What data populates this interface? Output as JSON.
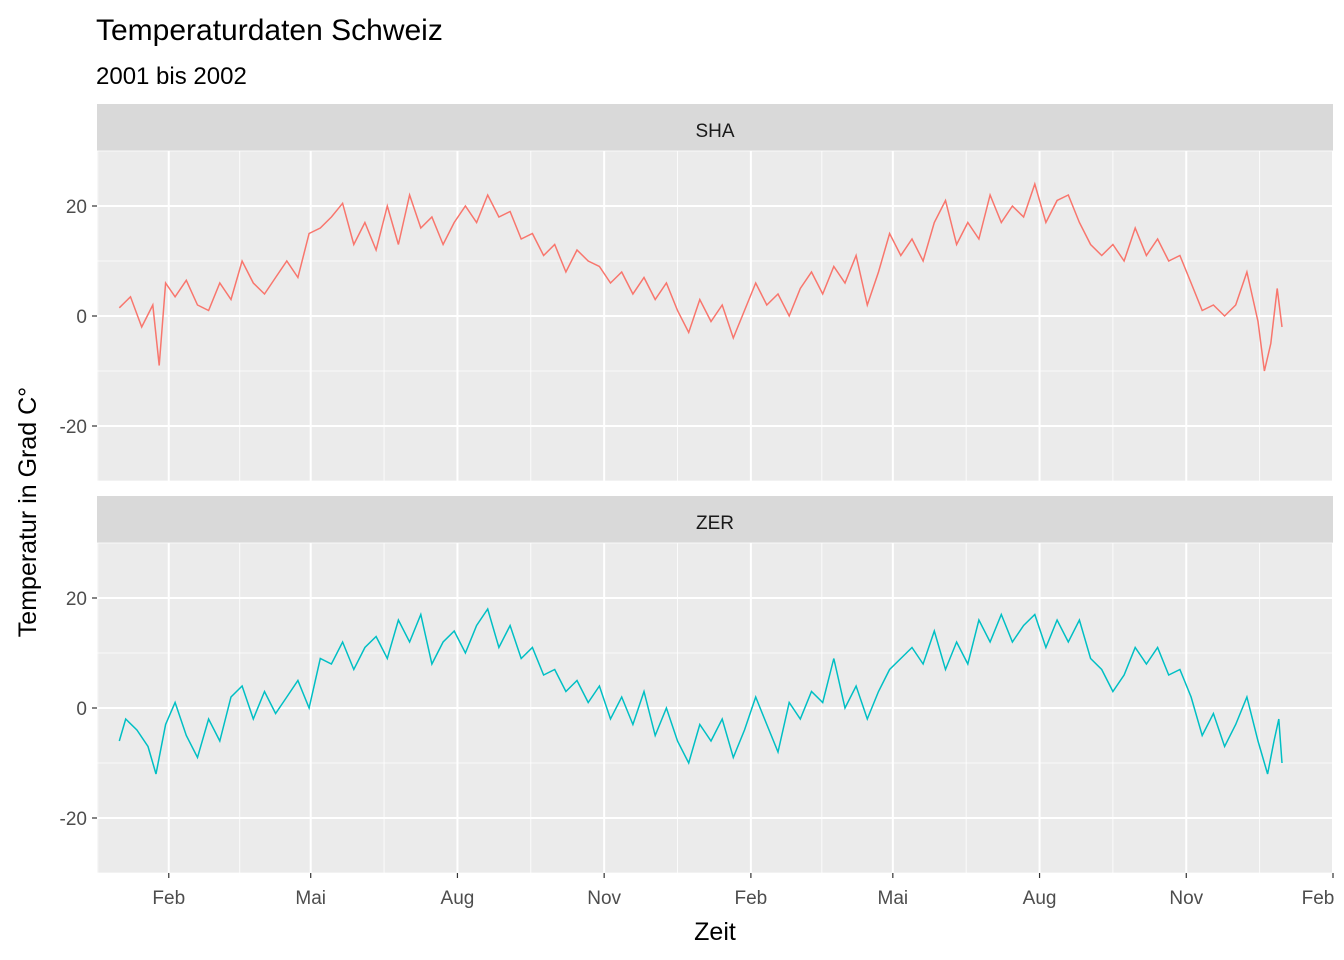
{
  "chart_data": {
    "type": "line",
    "title": "Temperaturdaten Schweiz",
    "subtitle": "2001 bis 2002",
    "xlabel": "Zeit",
    "ylabel": "Temperatur in Grad C°",
    "ylim": [
      -30,
      30
    ],
    "y_ticks": [
      -20,
      0,
      20
    ],
    "x_ticks": [
      {
        "date": "2001-02-01",
        "label": "Feb"
      },
      {
        "date": "2001-05-01",
        "label": "Mai"
      },
      {
        "date": "2001-08-01",
        "label": "Aug"
      },
      {
        "date": "2001-11-01",
        "label": "Nov"
      },
      {
        "date": "2002-02-01",
        "label": "Feb"
      },
      {
        "date": "2002-05-01",
        "label": "Mai"
      },
      {
        "date": "2002-08-01",
        "label": "Aug"
      },
      {
        "date": "2002-11-01",
        "label": "Nov"
      },
      {
        "date": "2003-02-01",
        "label": "Feb"
      }
    ],
    "xlim": [
      "2000-12-18",
      "2003-02-01"
    ],
    "grid": true,
    "legend": "none",
    "facets": [
      {
        "strip": "SHA",
        "color": "#F8766D",
        "series": {
          "name": "SHA",
          "points": [
            [
              "2001-01-01",
              1.5
            ],
            [
              "2001-01-08",
              3.5
            ],
            [
              "2001-01-15",
              -2.0
            ],
            [
              "2001-01-22",
              2.0
            ],
            [
              "2001-01-26",
              -9.0
            ],
            [
              "2001-01-30",
              6.0
            ],
            [
              "2001-02-05",
              3.5
            ],
            [
              "2001-02-12",
              6.5
            ],
            [
              "2001-02-19",
              2.0
            ],
            [
              "2001-02-26",
              1.0
            ],
            [
              "2001-03-05",
              6.0
            ],
            [
              "2001-03-12",
              3.0
            ],
            [
              "2001-03-19",
              10.0
            ],
            [
              "2001-03-26",
              6.0
            ],
            [
              "2001-04-02",
              4.0
            ],
            [
              "2001-04-09",
              7.0
            ],
            [
              "2001-04-16",
              10.0
            ],
            [
              "2001-04-23",
              7.0
            ],
            [
              "2001-04-30",
              15.0
            ],
            [
              "2001-05-07",
              16.0
            ],
            [
              "2001-05-14",
              18.0
            ],
            [
              "2001-05-21",
              20.5
            ],
            [
              "2001-05-28",
              13.0
            ],
            [
              "2001-06-04",
              17.0
            ],
            [
              "2001-06-11",
              12.0
            ],
            [
              "2001-06-18",
              20.0
            ],
            [
              "2001-06-25",
              13.0
            ],
            [
              "2001-07-02",
              22.0
            ],
            [
              "2001-07-09",
              16.0
            ],
            [
              "2001-07-16",
              18.0
            ],
            [
              "2001-07-23",
              13.0
            ],
            [
              "2001-07-30",
              17.0
            ],
            [
              "2001-08-06",
              20.0
            ],
            [
              "2001-08-13",
              17.0
            ],
            [
              "2001-08-20",
              22.0
            ],
            [
              "2001-08-27",
              18.0
            ],
            [
              "2001-09-03",
              19.0
            ],
            [
              "2001-09-10",
              14.0
            ],
            [
              "2001-09-17",
              15.0
            ],
            [
              "2001-09-24",
              11.0
            ],
            [
              "2001-10-01",
              13.0
            ],
            [
              "2001-10-08",
              8.0
            ],
            [
              "2001-10-15",
              12.0
            ],
            [
              "2001-10-22",
              10.0
            ],
            [
              "2001-10-29",
              9.0
            ],
            [
              "2001-11-05",
              6.0
            ],
            [
              "2001-11-12",
              8.0
            ],
            [
              "2001-11-19",
              4.0
            ],
            [
              "2001-11-26",
              7.0
            ],
            [
              "2001-12-03",
              3.0
            ],
            [
              "2001-12-10",
              6.0
            ],
            [
              "2001-12-17",
              1.0
            ],
            [
              "2001-12-24",
              -3.0
            ],
            [
              "2001-12-31",
              3.0
            ],
            [
              "2002-01-07",
              -1.0
            ],
            [
              "2002-01-14",
              2.0
            ],
            [
              "2002-01-21",
              -4.0
            ],
            [
              "2002-01-28",
              1.0
            ],
            [
              "2002-02-04",
              6.0
            ],
            [
              "2002-02-11",
              2.0
            ],
            [
              "2002-02-18",
              4.0
            ],
            [
              "2002-02-25",
              0.0
            ],
            [
              "2002-03-04",
              5.0
            ],
            [
              "2002-03-11",
              8.0
            ],
            [
              "2002-03-18",
              4.0
            ],
            [
              "2002-03-25",
              9.0
            ],
            [
              "2002-04-01",
              6.0
            ],
            [
              "2002-04-08",
              11.0
            ],
            [
              "2002-04-15",
              2.0
            ],
            [
              "2002-04-22",
              8.0
            ],
            [
              "2002-04-29",
              15.0
            ],
            [
              "2002-05-06",
              11.0
            ],
            [
              "2002-05-13",
              14.0
            ],
            [
              "2002-05-20",
              10.0
            ],
            [
              "2002-05-27",
              17.0
            ],
            [
              "2002-06-03",
              21.0
            ],
            [
              "2002-06-10",
              13.0
            ],
            [
              "2002-06-17",
              17.0
            ],
            [
              "2002-06-24",
              14.0
            ],
            [
              "2002-07-01",
              22.0
            ],
            [
              "2002-07-08",
              17.0
            ],
            [
              "2002-07-15",
              20.0
            ],
            [
              "2002-07-22",
              18.0
            ],
            [
              "2002-07-29",
              24.0
            ],
            [
              "2002-08-05",
              17.0
            ],
            [
              "2002-08-12",
              21.0
            ],
            [
              "2002-08-19",
              22.0
            ],
            [
              "2002-08-26",
              17.0
            ],
            [
              "2002-09-02",
              13.0
            ],
            [
              "2002-09-09",
              11.0
            ],
            [
              "2002-09-16",
              13.0
            ],
            [
              "2002-09-23",
              10.0
            ],
            [
              "2002-09-30",
              16.0
            ],
            [
              "2002-10-07",
              11.0
            ],
            [
              "2002-10-14",
              14.0
            ],
            [
              "2002-10-21",
              10.0
            ],
            [
              "2002-10-28",
              11.0
            ],
            [
              "2002-11-04",
              6.0
            ],
            [
              "2002-11-11",
              1.0
            ],
            [
              "2002-11-18",
              2.0
            ],
            [
              "2002-11-25",
              0.0
            ],
            [
              "2002-12-02",
              2.0
            ],
            [
              "2002-12-09",
              8.0
            ],
            [
              "2002-12-16",
              -1.0
            ],
            [
              "2002-12-20",
              -10.0
            ],
            [
              "2002-12-24",
              -5.0
            ],
            [
              "2002-12-28",
              5.0
            ],
            [
              "2002-12-31",
              -2.0
            ]
          ]
        }
      },
      {
        "strip": "ZER",
        "color": "#00BFC4",
        "series": {
          "name": "ZER",
          "points": [
            [
              "2001-01-01",
              -6.0
            ],
            [
              "2001-01-05",
              -2.0
            ],
            [
              "2001-01-12",
              -4.0
            ],
            [
              "2001-01-19",
              -7.0
            ],
            [
              "2001-01-24",
              -12.0
            ],
            [
              "2001-01-30",
              -3.0
            ],
            [
              "2001-02-05",
              1.0
            ],
            [
              "2001-02-12",
              -5.0
            ],
            [
              "2001-02-19",
              -9.0
            ],
            [
              "2001-02-26",
              -2.0
            ],
            [
              "2001-03-05",
              -6.0
            ],
            [
              "2001-03-12",
              2.0
            ],
            [
              "2001-03-19",
              4.0
            ],
            [
              "2001-03-26",
              -2.0
            ],
            [
              "2001-04-02",
              3.0
            ],
            [
              "2001-04-09",
              -1.0
            ],
            [
              "2001-04-16",
              2.0
            ],
            [
              "2001-04-23",
              5.0
            ],
            [
              "2001-04-30",
              0.0
            ],
            [
              "2001-05-07",
              9.0
            ],
            [
              "2001-05-14",
              8.0
            ],
            [
              "2001-05-21",
              12.0
            ],
            [
              "2001-05-28",
              7.0
            ],
            [
              "2001-06-04",
              11.0
            ],
            [
              "2001-06-11",
              13.0
            ],
            [
              "2001-06-18",
              9.0
            ],
            [
              "2001-06-25",
              16.0
            ],
            [
              "2001-07-02",
              12.0
            ],
            [
              "2001-07-09",
              17.0
            ],
            [
              "2001-07-16",
              8.0
            ],
            [
              "2001-07-23",
              12.0
            ],
            [
              "2001-07-30",
              14.0
            ],
            [
              "2001-08-06",
              10.0
            ],
            [
              "2001-08-13",
              15.0
            ],
            [
              "2001-08-20",
              18.0
            ],
            [
              "2001-08-27",
              11.0
            ],
            [
              "2001-09-03",
              15.0
            ],
            [
              "2001-09-10",
              9.0
            ],
            [
              "2001-09-17",
              11.0
            ],
            [
              "2001-09-24",
              6.0
            ],
            [
              "2001-10-01",
              7.0
            ],
            [
              "2001-10-08",
              3.0
            ],
            [
              "2001-10-15",
              5.0
            ],
            [
              "2001-10-22",
              1.0
            ],
            [
              "2001-10-29",
              4.0
            ],
            [
              "2001-11-05",
              -2.0
            ],
            [
              "2001-11-12",
              2.0
            ],
            [
              "2001-11-19",
              -3.0
            ],
            [
              "2001-11-26",
              3.0
            ],
            [
              "2001-12-03",
              -5.0
            ],
            [
              "2001-12-10",
              0.0
            ],
            [
              "2001-12-17",
              -6.0
            ],
            [
              "2001-12-24",
              -10.0
            ],
            [
              "2001-12-31",
              -3.0
            ],
            [
              "2002-01-07",
              -6.0
            ],
            [
              "2002-01-14",
              -2.0
            ],
            [
              "2002-01-21",
              -9.0
            ],
            [
              "2002-01-28",
              -4.0
            ],
            [
              "2002-02-04",
              2.0
            ],
            [
              "2002-02-11",
              -3.0
            ],
            [
              "2002-02-18",
              -8.0
            ],
            [
              "2002-02-25",
              1.0
            ],
            [
              "2002-03-04",
              -2.0
            ],
            [
              "2002-03-11",
              3.0
            ],
            [
              "2002-03-18",
              1.0
            ],
            [
              "2002-03-25",
              9.0
            ],
            [
              "2002-04-01",
              0.0
            ],
            [
              "2002-04-08",
              4.0
            ],
            [
              "2002-04-15",
              -2.0
            ],
            [
              "2002-04-22",
              3.0
            ],
            [
              "2002-04-29",
              7.0
            ],
            [
              "2002-05-06",
              9.0
            ],
            [
              "2002-05-13",
              11.0
            ],
            [
              "2002-05-20",
              8.0
            ],
            [
              "2002-05-27",
              14.0
            ],
            [
              "2002-06-03",
              7.0
            ],
            [
              "2002-06-10",
              12.0
            ],
            [
              "2002-06-17",
              8.0
            ],
            [
              "2002-06-24",
              16.0
            ],
            [
              "2002-07-01",
              12.0
            ],
            [
              "2002-07-08",
              17.0
            ],
            [
              "2002-07-15",
              12.0
            ],
            [
              "2002-07-22",
              15.0
            ],
            [
              "2002-07-29",
              17.0
            ],
            [
              "2002-08-05",
              11.0
            ],
            [
              "2002-08-12",
              16.0
            ],
            [
              "2002-08-19",
              12.0
            ],
            [
              "2002-08-26",
              16.0
            ],
            [
              "2002-09-02",
              9.0
            ],
            [
              "2002-09-09",
              7.0
            ],
            [
              "2002-09-16",
              3.0
            ],
            [
              "2002-09-23",
              6.0
            ],
            [
              "2002-09-30",
              11.0
            ],
            [
              "2002-10-07",
              8.0
            ],
            [
              "2002-10-14",
              11.0
            ],
            [
              "2002-10-21",
              6.0
            ],
            [
              "2002-10-28",
              7.0
            ],
            [
              "2002-11-04",
              2.0
            ],
            [
              "2002-11-11",
              -5.0
            ],
            [
              "2002-11-18",
              -1.0
            ],
            [
              "2002-11-25",
              -7.0
            ],
            [
              "2002-12-02",
              -3.0
            ],
            [
              "2002-12-09",
              2.0
            ],
            [
              "2002-12-16",
              -6.0
            ],
            [
              "2002-12-22",
              -12.0
            ],
            [
              "2002-12-26",
              -6.0
            ],
            [
              "2002-12-29",
              -2.0
            ],
            [
              "2002-12-31",
              -10.0
            ]
          ]
        }
      }
    ]
  }
}
